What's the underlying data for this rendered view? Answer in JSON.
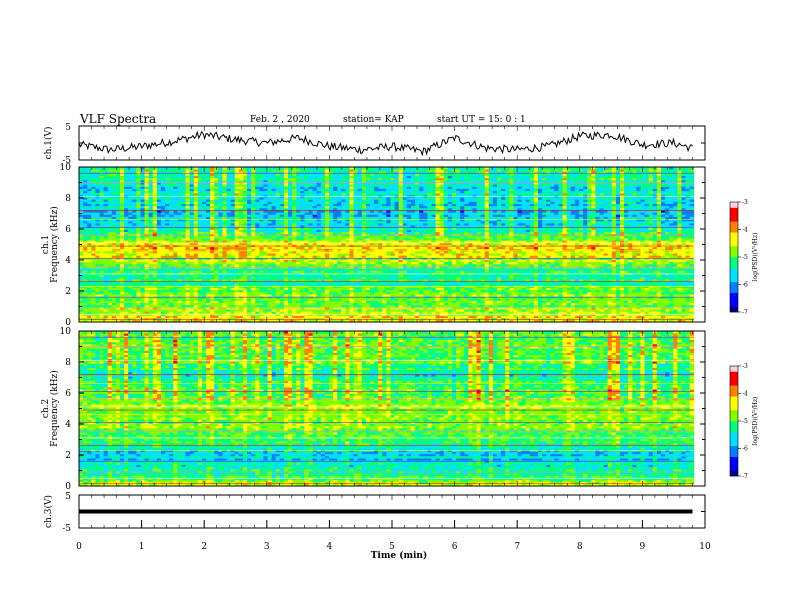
{
  "header": {
    "title": "VLF Spectra",
    "date": "Feb. 2 , 2020",
    "station": "station= KAP",
    "start": "start UT = 15: 0 : 1"
  },
  "colors": {
    "trace": "#000000",
    "colormap": [
      "#000090",
      "#0000ff",
      "#0080ff",
      "#00e0ff",
      "#00ff80",
      "#80ff00",
      "#ffff00",
      "#ff8000",
      "#ff0000",
      "#ffd0e0"
    ]
  },
  "chart_data": [
    {
      "type": "line",
      "ylabel": "ch.1(V)",
      "ylim": [
        -5,
        5
      ],
      "yticks": [
        "5",
        "-5"
      ],
      "xlim": [
        0,
        10
      ],
      "description_of_shape": "noisy waveform around 0 V with slow swells",
      "x": [
        0,
        0.5,
        1,
        1.5,
        2,
        2.5,
        3,
        3.5,
        4,
        4.5,
        5,
        5.5,
        6,
        6.5,
        7,
        7.5,
        8,
        8.5,
        9,
        9.5,
        9.8
      ],
      "y": [
        -0.5,
        -2,
        -1,
        0.5,
        2.5,
        1,
        0,
        1.5,
        -1,
        -2,
        -1,
        -2.5,
        1.5,
        -1.5,
        -2,
        -1,
        2,
        2.5,
        -0.5,
        0,
        -1.5
      ]
    },
    {
      "type": "heatmap",
      "ylabel": "ch.1",
      "ylabel2": "Frequency (kHz)",
      "ylim": [
        0,
        10
      ],
      "yticks": [
        "0",
        "2",
        "4",
        "6",
        "8",
        "10"
      ],
      "xlim": [
        0,
        10
      ],
      "colorbar": {
        "label": "log(PSD)(V²/Hz)",
        "range": [
          -7,
          -3
        ],
        "ticks": [
          "-3",
          "-4",
          "-5",
          "-6",
          "-7"
        ]
      },
      "band_levels_kHz": [
        0.2,
        1.0,
        2.0,
        3.0,
        4.0,
        5.0,
        6.0,
        7.0,
        8.0,
        9.0,
        9.9
      ],
      "band_values_logPSD": [
        -4.4,
        -4.8,
        -5.0,
        -5.6,
        -4.6,
        -4.3,
        -5.4,
        -5.8,
        -5.6,
        -5.5,
        -5.4
      ]
    },
    {
      "type": "heatmap",
      "ylabel": "ch.2",
      "ylabel2": "Frequency (kHz)",
      "ylim": [
        0,
        10
      ],
      "yticks": [
        "0",
        "2",
        "4",
        "6",
        "8",
        "10"
      ],
      "xlim": [
        0,
        10
      ],
      "colorbar": {
        "label": "log(PSD)(V²/Hz)",
        "range": [
          -7,
          -3
        ],
        "ticks": [
          "-3",
          "-4",
          "-5",
          "-6",
          "-7"
        ]
      },
      "band_levels_kHz": [
        0.2,
        1.0,
        2.0,
        3.0,
        4.0,
        5.0,
        6.0,
        7.0,
        8.0,
        9.0,
        9.9
      ],
      "band_values_logPSD": [
        -4.8,
        -5.2,
        -5.8,
        -5.2,
        -4.6,
        -4.7,
        -5.0,
        -5.4,
        -5.0,
        -4.9,
        -5.0
      ]
    },
    {
      "type": "line",
      "ylabel": "ch.3(V)",
      "ylim": [
        -5,
        5
      ],
      "yticks": [
        "5",
        "-5"
      ],
      "xlim": [
        0,
        9.8
      ],
      "x": [
        0,
        9.8
      ],
      "y": [
        0,
        0
      ]
    }
  ],
  "xaxis": {
    "label": "Time (min)",
    "ticks": [
      "0",
      "1",
      "2",
      "3",
      "4",
      "5",
      "6",
      "7",
      "8",
      "9",
      "10"
    ]
  }
}
